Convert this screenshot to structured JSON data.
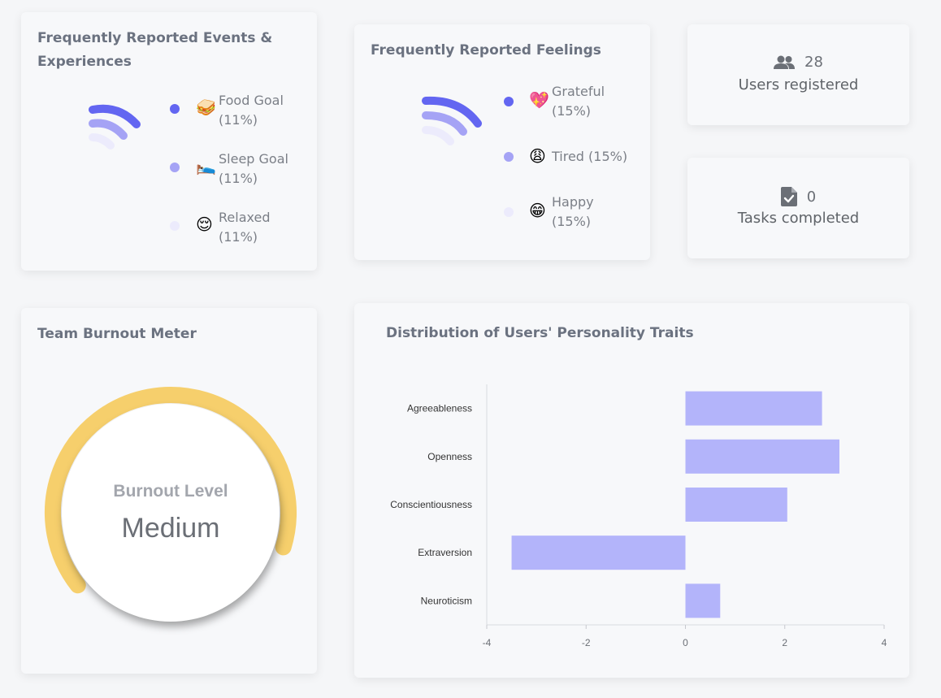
{
  "events_card": {
    "title": "Frequently Reported Events & Experiences",
    "items": [
      {
        "emoji": "🥪",
        "label": "Food Goal",
        "pct": "(11%)",
        "color": "#6366f1"
      },
      {
        "emoji": "🛌",
        "label": "Sleep Goal",
        "pct": "(11%)",
        "color": "#a5a3f5"
      },
      {
        "emoji": "😌",
        "label": "Relaxed",
        "pct": "(11%)",
        "color": "#ecebfc"
      }
    ]
  },
  "feelings_card": {
    "title": "Frequently Reported Feelings",
    "items": [
      {
        "emoji": "💖",
        "label": "Grateful",
        "pct": "(15%)",
        "color": "#6366f1"
      },
      {
        "emoji": "😩",
        "label": "Tired (15%)",
        "pct": "",
        "color": "#a5a3f5"
      },
      {
        "emoji": "😁",
        "label": "Happy",
        "pct": "(15%)",
        "color": "#ecebfc"
      }
    ]
  },
  "users_card": {
    "icon": "users-icon",
    "value": "28",
    "label": "Users registered"
  },
  "tasks_card": {
    "icon": "file-check-icon",
    "value": "0",
    "label": "Tasks completed"
  },
  "burnout_card": {
    "title": "Team Burnout Meter",
    "label": "Burnout Level",
    "value": "Medium",
    "level_fraction": 0.5,
    "color": "#f6cf6c"
  },
  "traits_card": {
    "title": "Distribution of Users' Personality Traits"
  },
  "chart_data": {
    "type": "bar",
    "orientation": "horizontal",
    "title": "Distribution of Users' Personality Traits",
    "categories": [
      "Agreeableness",
      "Openness",
      "Conscientiousness",
      "Extraversion",
      "Neuroticism"
    ],
    "values": [
      2.75,
      3.1,
      2.05,
      -3.5,
      0.7
    ],
    "xlim": [
      -4,
      4
    ],
    "xticks": [
      -4,
      -2,
      0,
      2,
      4
    ],
    "bar_color": "#b3b4fa",
    "xlabel": "",
    "ylabel": ""
  }
}
